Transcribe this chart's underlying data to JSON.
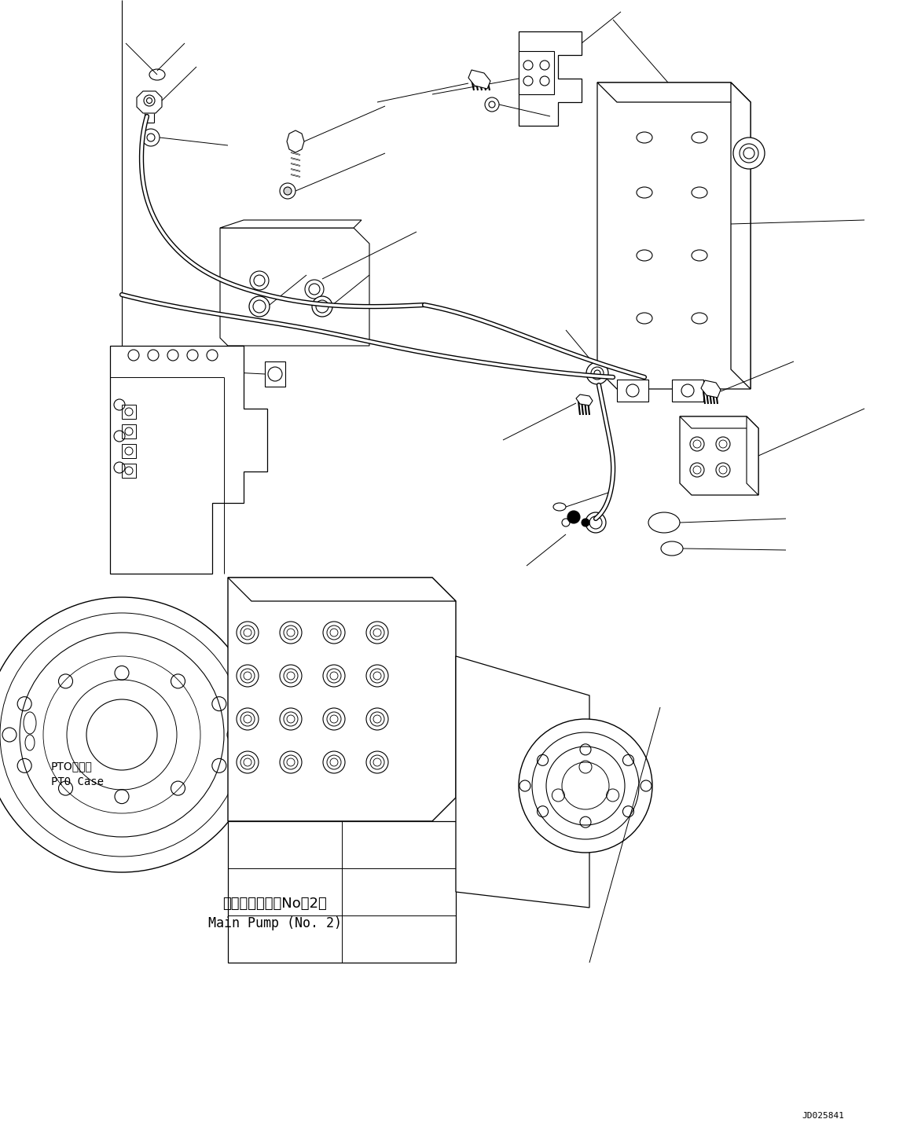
{
  "bg_color": "#ffffff",
  "lc": "#000000",
  "lw": 0.8,
  "title_jp": "メインポンプ（No．2）",
  "title_en": "Main Pump (No. 2)",
  "label_pto_jp": "PTOケース",
  "label_pto_en": "PTO Case",
  "watermark": "JD025841",
  "fig_width": 11.63,
  "fig_height": 14.38,
  "dpi": 100
}
